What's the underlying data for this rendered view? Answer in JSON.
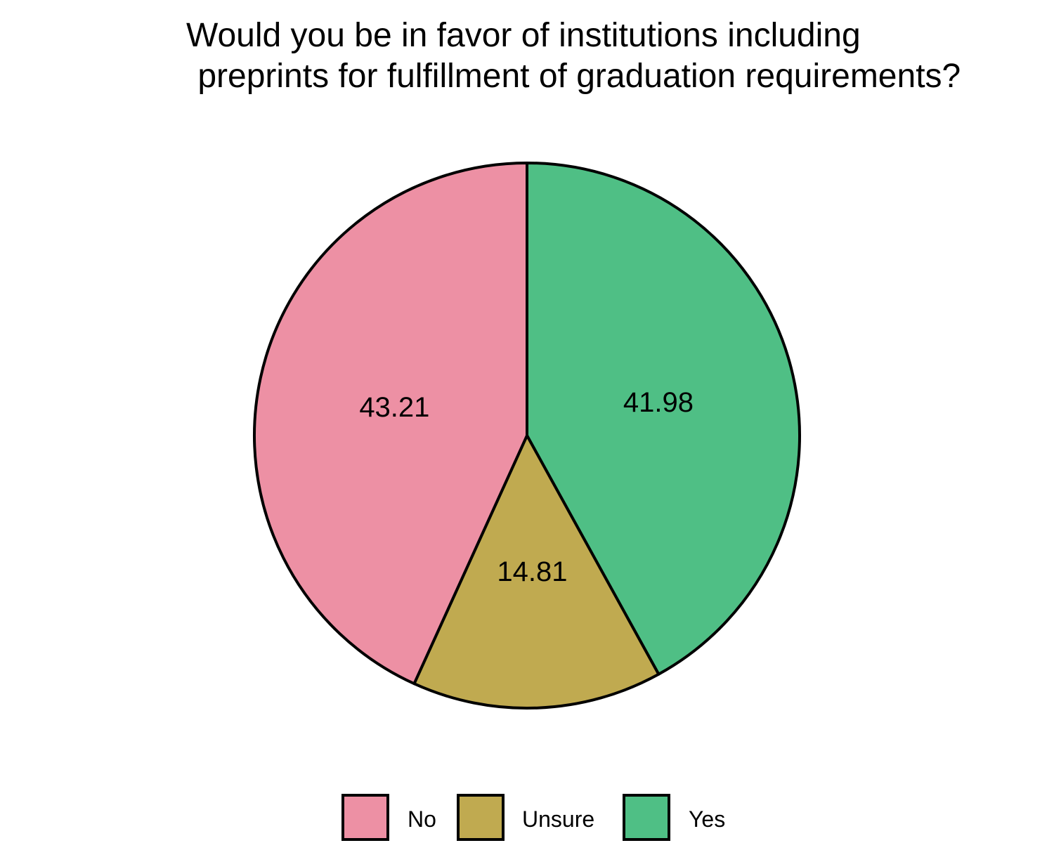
{
  "chart_data": {
    "type": "pie",
    "title": [
      "Would you be in favor of institutions including",
      " preprints for fulfillment of graduation requirements?"
    ],
    "slices": [
      {
        "label": "Yes",
        "value": 41.98,
        "color": "#4FBF85"
      },
      {
        "label": "Unsure",
        "value": 14.81,
        "color": "#C0AA50"
      },
      {
        "label": "No",
        "value": 43.21,
        "color": "#ED90A4"
      }
    ],
    "data_labels": [
      "41.98",
      "14.81",
      "43.21"
    ],
    "start_angle": "12 o'clock",
    "direction": "clockwise",
    "legend": {
      "placement": "bottom",
      "entries": [
        {
          "label": "No",
          "color": "#ED90A4"
        },
        {
          "label": "Unsure",
          "color": "#C0AA50"
        },
        {
          "label": "Yes",
          "color": "#4FBF85"
        }
      ]
    }
  }
}
